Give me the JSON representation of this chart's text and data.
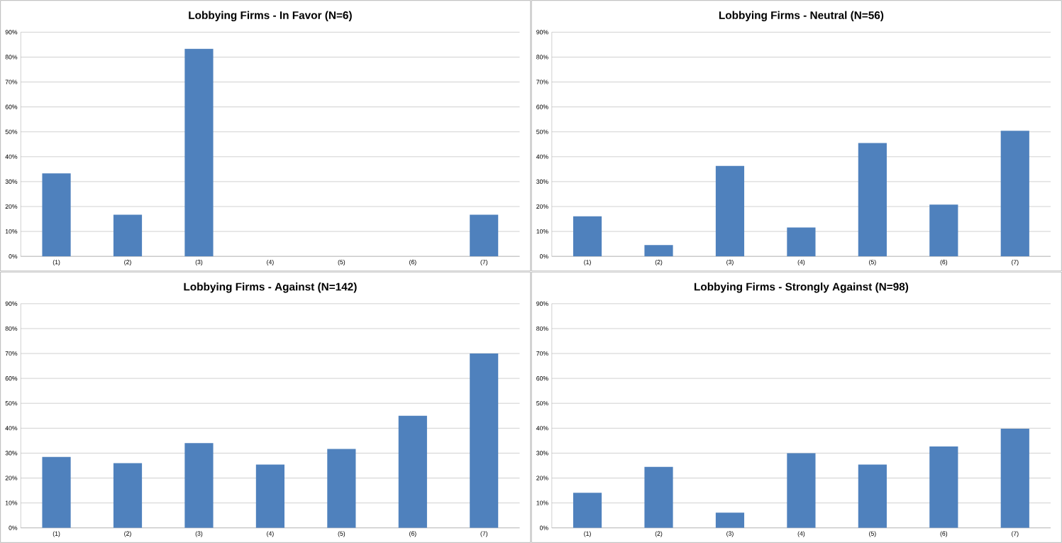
{
  "chart_data": [
    {
      "type": "bar",
      "title": "Lobbying Firms - In Favor (N=6)",
      "categories": [
        "(1)",
        "(2)",
        "(3)",
        "(4)",
        "(5)",
        "(6)",
        "(7)"
      ],
      "values": [
        33.3,
        16.7,
        83.3,
        0,
        0,
        0,
        16.7
      ],
      "color": "#4f81bd",
      "ylim": [
        0,
        90
      ],
      "yticks": [
        {
          "value": 0,
          "label": "0%"
        },
        {
          "value": 10,
          "label": "10%"
        },
        {
          "value": 20,
          "label": "20%"
        },
        {
          "value": 30,
          "label": "30%"
        },
        {
          "value": 40,
          "label": "40%"
        },
        {
          "value": 50,
          "label": "50%"
        },
        {
          "value": 60,
          "label": "60%"
        },
        {
          "value": 70,
          "label": "70%"
        },
        {
          "value": 80,
          "label": "80%"
        },
        {
          "value": 90,
          "label": "90%"
        }
      ],
      "grid": "y"
    },
    {
      "type": "bar",
      "title": "Lobbying Firms - Neutral (N=56)",
      "categories": [
        "(1)",
        "(2)",
        "(3)",
        "(4)",
        "(5)",
        "(6)",
        "(7)"
      ],
      "values": [
        16.1,
        4.5,
        36.3,
        11.6,
        45.5,
        20.8,
        50.4
      ],
      "color": "#4f81bd",
      "ylim": [
        0,
        90
      ],
      "yticks": [
        {
          "value": 0,
          "label": "0%"
        },
        {
          "value": 10,
          "label": "10%"
        },
        {
          "value": 20,
          "label": "20%"
        },
        {
          "value": 30,
          "label": "30%"
        },
        {
          "value": 40,
          "label": "40%"
        },
        {
          "value": 50,
          "label": "50%"
        },
        {
          "value": 60,
          "label": "60%"
        },
        {
          "value": 70,
          "label": "70%"
        },
        {
          "value": 80,
          "label": "80%"
        },
        {
          "value": 90,
          "label": "90%"
        }
      ],
      "grid": "y"
    },
    {
      "type": "bar",
      "title": "Lobbying Firms - Against (N=142)",
      "categories": [
        "(1)",
        "(2)",
        "(3)",
        "(4)",
        "(5)",
        "(6)",
        "(7)"
      ],
      "values": [
        28.5,
        26,
        34,
        25.4,
        31.7,
        45,
        70
      ],
      "color": "#4f81bd",
      "ylim": [
        0,
        90
      ],
      "yticks": [
        {
          "value": 0,
          "label": "0%"
        },
        {
          "value": 10,
          "label": "10%"
        },
        {
          "value": 20,
          "label": "20%"
        },
        {
          "value": 30,
          "label": "30%"
        },
        {
          "value": 40,
          "label": "40%"
        },
        {
          "value": 50,
          "label": "50%"
        },
        {
          "value": 60,
          "label": "60%"
        },
        {
          "value": 70,
          "label": "70%"
        },
        {
          "value": 80,
          "label": "80%"
        },
        {
          "value": 90,
          "label": "90%"
        }
      ],
      "grid": "y"
    },
    {
      "type": "bar",
      "title": "Lobbying Firms - Strongly Against (N=98)",
      "categories": [
        "(1)",
        "(2)",
        "(3)",
        "(4)",
        "(5)",
        "(6)",
        "(7)"
      ],
      "values": [
        14.1,
        24.5,
        6.1,
        30,
        25.4,
        32.7,
        39.8
      ],
      "color": "#4f81bd",
      "ylim": [
        0,
        90
      ],
      "yticks": [
        {
          "value": 0,
          "label": "0%"
        },
        {
          "value": 10,
          "label": "10%"
        },
        {
          "value": 20,
          "label": "20%"
        },
        {
          "value": 30,
          "label": "30%"
        },
        {
          "value": 40,
          "label": "40%"
        },
        {
          "value": 50,
          "label": "50%"
        },
        {
          "value": 60,
          "label": "60%"
        },
        {
          "value": 70,
          "label": "70%"
        },
        {
          "value": 80,
          "label": "80%"
        },
        {
          "value": 90,
          "label": "90%"
        }
      ],
      "grid": "y"
    }
  ]
}
